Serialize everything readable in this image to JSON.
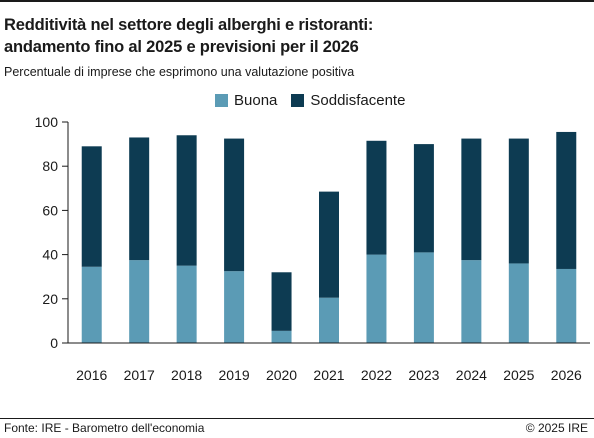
{
  "header": {
    "title_line1": "Redditività nel settore degli alberghi e ristoranti:",
    "title_line2": "andamento fino al 2025 e previsioni per il 2026",
    "subtitle": "Percentuale di imprese che esprimono una valutazione positiva"
  },
  "footer": {
    "source": "Fonte: IRE - Barometro dell'economia",
    "copyright": "© 2025 IRE"
  },
  "colors": {
    "buona": "#5b9bb5",
    "soddisfacente": "#0d3b52",
    "axis": "#1a1a1a"
  },
  "chart_data": {
    "type": "bar",
    "stacked": true,
    "categories": [
      "2016",
      "2017",
      "2018",
      "2019",
      "2020",
      "2021",
      "2022",
      "2023",
      "2024",
      "2025",
      "2026"
    ],
    "series": [
      {
        "name": "Buona",
        "values": [
          34.5,
          37.5,
          35,
          32.5,
          5.5,
          20.5,
          40,
          41,
          37.5,
          36,
          33.5
        ]
      },
      {
        "name": "Soddisfacente",
        "values": [
          54.5,
          55.5,
          59,
          60,
          26.5,
          48,
          51.5,
          49,
          55,
          56.5,
          62
        ]
      }
    ],
    "yticks": [
      0,
      20,
      40,
      60,
      80,
      100
    ],
    "ylim": [
      0,
      100
    ],
    "grid": false,
    "legend_position": "top"
  }
}
